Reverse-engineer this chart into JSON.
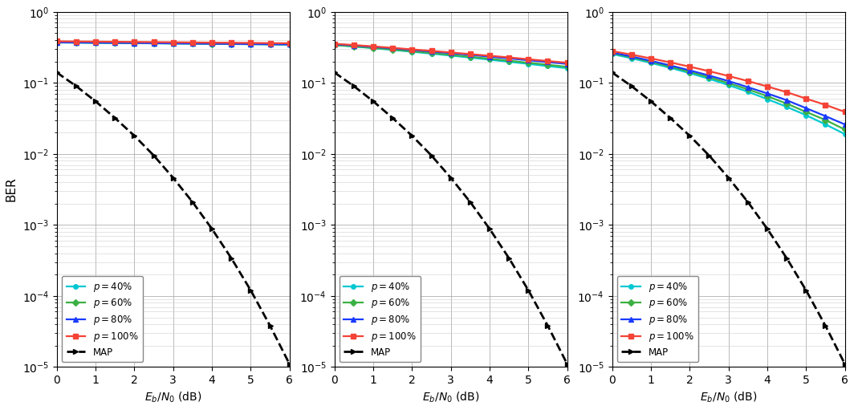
{
  "snr_db": [
    0,
    0.5,
    1.0,
    1.5,
    2.0,
    2.5,
    3.0,
    3.5,
    4.0,
    4.5,
    5.0,
    5.5,
    6.0
  ],
  "ylabel": "BER",
  "xlabel": "$E_b/N_0$ (dB)",
  "ylim": [
    1e-05,
    1.0
  ],
  "xlim": [
    0,
    6
  ],
  "colors": {
    "p40": "#00c8d2",
    "p60": "#3cb044",
    "p80": "#1a3bff",
    "p100": "#f44336",
    "map": "#000000"
  },
  "legend_labels": {
    "p40": "$p = 40\\%$",
    "p60": "$p = 60\\%$",
    "p80": "$p = 80\\%$",
    "p100": "$p = 100\\%$",
    "map": "MAP"
  },
  "plot1": {
    "p40": [
      0.37,
      0.368,
      0.366,
      0.364,
      0.362,
      0.36,
      0.358,
      0.356,
      0.354,
      0.352,
      0.35,
      0.348,
      0.346
    ],
    "p60": [
      0.371,
      0.369,
      0.367,
      0.365,
      0.363,
      0.361,
      0.359,
      0.357,
      0.355,
      0.353,
      0.351,
      0.349,
      0.347
    ],
    "p80": [
      0.372,
      0.37,
      0.368,
      0.366,
      0.364,
      0.362,
      0.36,
      0.358,
      0.356,
      0.354,
      0.352,
      0.35,
      0.348
    ],
    "p100": [
      0.385,
      0.383,
      0.381,
      0.379,
      0.377,
      0.375,
      0.373,
      0.371,
      0.369,
      0.367,
      0.365,
      0.363,
      0.361
    ],
    "map": [
      0.14,
      0.09,
      0.055,
      0.032,
      0.018,
      0.0095,
      0.0046,
      0.0021,
      0.00088,
      0.00034,
      0.00012,
      3.8e-05,
      1.1e-05
    ]
  },
  "plot2": {
    "p40": [
      0.34,
      0.325,
      0.308,
      0.291,
      0.274,
      0.258,
      0.242,
      0.227,
      0.212,
      0.198,
      0.185,
      0.172,
      0.161
    ],
    "p60": [
      0.342,
      0.327,
      0.311,
      0.295,
      0.279,
      0.263,
      0.248,
      0.233,
      0.219,
      0.205,
      0.192,
      0.18,
      0.168
    ],
    "p80": [
      0.35,
      0.336,
      0.321,
      0.306,
      0.291,
      0.276,
      0.262,
      0.248,
      0.234,
      0.221,
      0.208,
      0.196,
      0.185
    ],
    "p100": [
      0.355,
      0.341,
      0.326,
      0.311,
      0.296,
      0.282,
      0.268,
      0.254,
      0.241,
      0.228,
      0.215,
      0.203,
      0.192
    ],
    "map": [
      0.14,
      0.09,
      0.055,
      0.032,
      0.018,
      0.0095,
      0.0046,
      0.0021,
      0.00088,
      0.00034,
      0.00012,
      3.8e-05,
      1.1e-05
    ]
  },
  "plot3": {
    "p40": [
      0.255,
      0.222,
      0.191,
      0.163,
      0.137,
      0.114,
      0.093,
      0.075,
      0.059,
      0.046,
      0.035,
      0.026,
      0.019
    ],
    "p60": [
      0.262,
      0.229,
      0.198,
      0.169,
      0.143,
      0.12,
      0.099,
      0.081,
      0.065,
      0.051,
      0.039,
      0.03,
      0.022
    ],
    "p80": [
      0.268,
      0.235,
      0.204,
      0.176,
      0.15,
      0.127,
      0.106,
      0.087,
      0.071,
      0.057,
      0.044,
      0.034,
      0.026
    ],
    "p100": [
      0.28,
      0.25,
      0.221,
      0.194,
      0.169,
      0.146,
      0.125,
      0.106,
      0.089,
      0.074,
      0.06,
      0.049,
      0.039
    ],
    "map": [
      0.14,
      0.09,
      0.055,
      0.032,
      0.018,
      0.0095,
      0.0046,
      0.0021,
      0.00088,
      0.00034,
      0.00012,
      3.8e-05,
      1.1e-05
    ]
  }
}
